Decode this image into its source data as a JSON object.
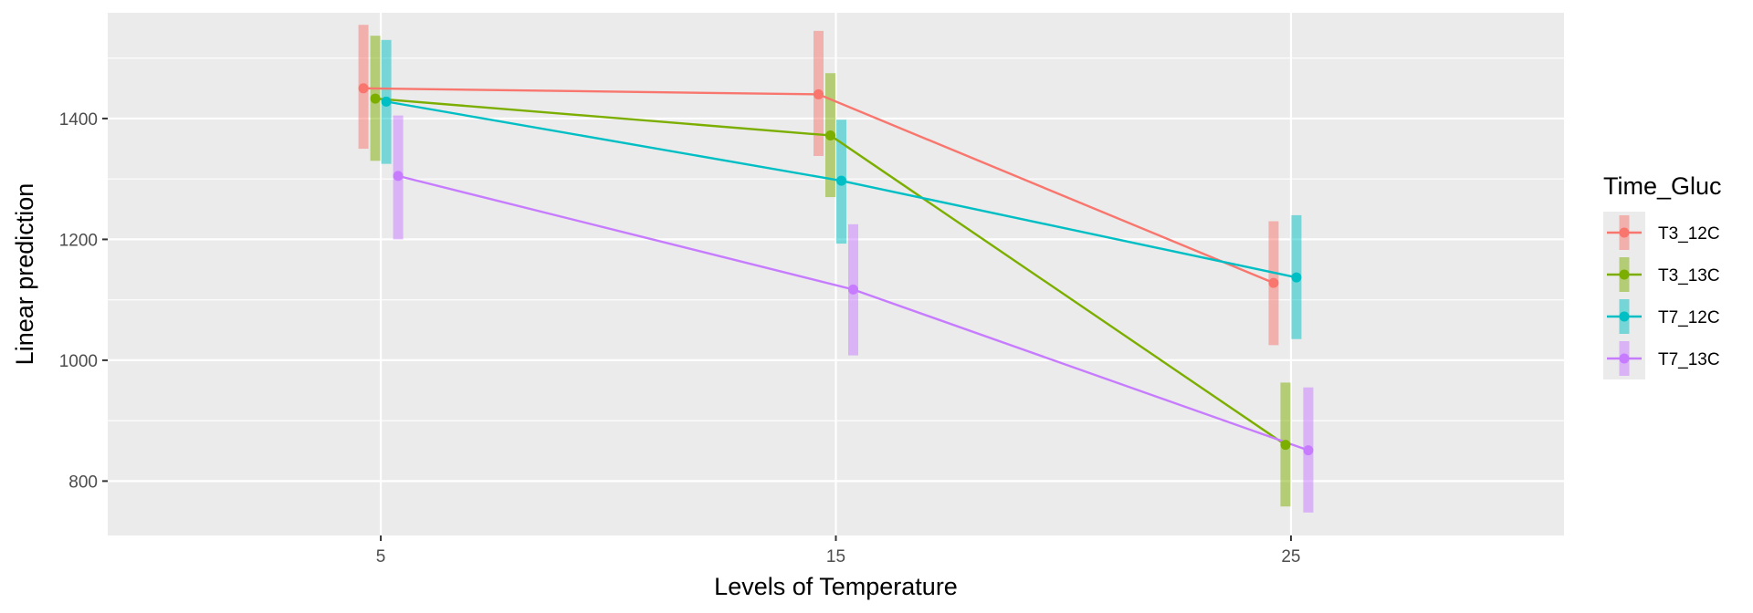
{
  "chart_data": {
    "type": "line",
    "subtype": "interaction-plot-with-confidence-bars",
    "xlabel": "Levels of Temperature",
    "ylabel": "Linear prediction",
    "categories": [
      "5",
      "15",
      "25"
    ],
    "x": [
      5,
      15,
      25
    ],
    "xlim": [
      -1,
      31
    ],
    "ylim": [
      710,
      1575
    ],
    "yticks": [
      800,
      1000,
      1200,
      1400
    ],
    "grid": true,
    "panel_background": "#ebebeb",
    "grid_color": "#ffffff",
    "legend": {
      "title": "Time_Gluc",
      "position": "right"
    },
    "series": [
      {
        "name": "T3_12C",
        "color": "#f8766d",
        "values": [
          1450,
          1440,
          1128
        ],
        "ci_low": [
          1350,
          1338,
          1025
        ],
        "ci_high": [
          1555,
          1545,
          1230
        ]
      },
      {
        "name": "T3_13C",
        "color": "#7cae00",
        "values": [
          1433,
          1372,
          860
        ],
        "ci_low": [
          1330,
          1270,
          758
        ],
        "ci_high": [
          1537,
          1475,
          963
        ]
      },
      {
        "name": "T7_12C",
        "color": "#00bfc4",
        "values": [
          1428,
          1297,
          1137
        ],
        "ci_low": [
          1325,
          1193,
          1035
        ],
        "ci_high": [
          1530,
          1398,
          1240
        ]
      },
      {
        "name": "T7_13C",
        "color": "#c77cff",
        "values": [
          1305,
          1117,
          851
        ],
        "ci_low": [
          1200,
          1008,
          748
        ],
        "ci_high": [
          1405,
          1225,
          955
        ]
      }
    ]
  }
}
